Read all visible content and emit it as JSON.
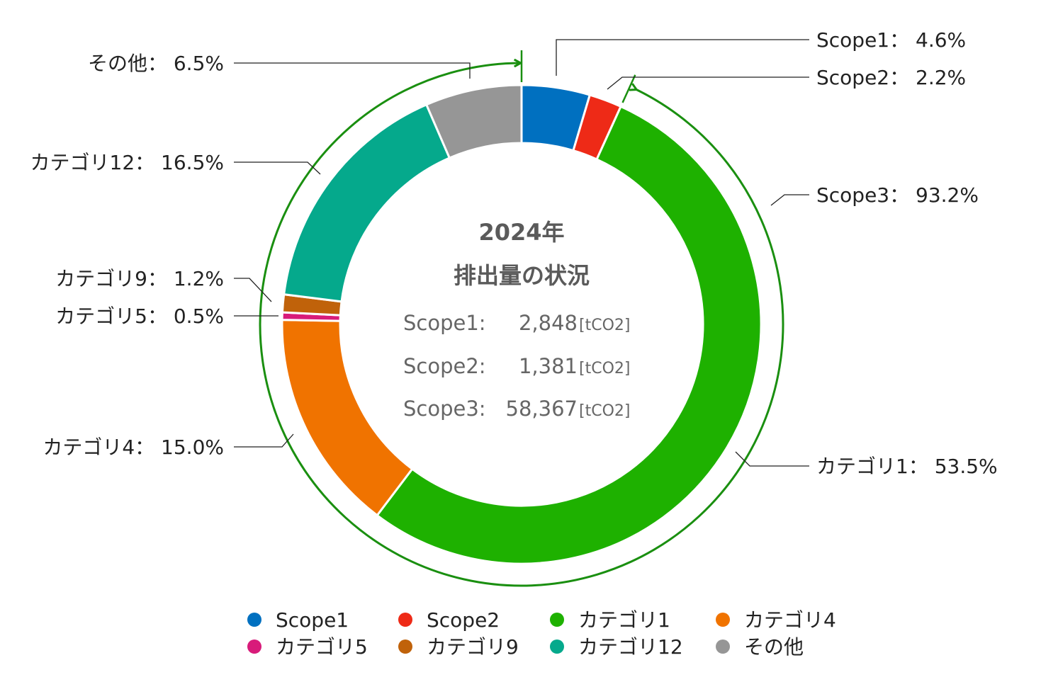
{
  "chart_data": {
    "type": "pie",
    "variant": "donut",
    "title": "2024年",
    "subtitle": "排出量の状況",
    "slices": [
      {
        "name": "Scope1",
        "value": 4.6,
        "color": "#0070c0"
      },
      {
        "name": "Scope2",
        "value": 2.2,
        "color": "#ee2a17"
      },
      {
        "name": "カテゴリ1",
        "value": 53.5,
        "color": "#1eb100"
      },
      {
        "name": "カテゴリ4",
        "value": 15.0,
        "color": "#f07300"
      },
      {
        "name": "カテゴリ5",
        "value": 0.5,
        "color": "#d81b7a"
      },
      {
        "name": "カテゴリ9",
        "value": 1.2,
        "color": "#c0620a"
      },
      {
        "name": "カテゴリ12",
        "value": 16.5,
        "color": "#05a98c"
      },
      {
        "name": "その他",
        "value": 6.5,
        "color": "#969696"
      }
    ],
    "callouts": [
      {
        "slice": "Scope1",
        "text": "Scope1： 4.6%"
      },
      {
        "slice": "Scope2",
        "text": "Scope2： 2.2%"
      },
      {
        "slice": "Scope3",
        "text": "Scope3： 93.2%"
      },
      {
        "slice": "カテゴリ1",
        "text": "カテゴリ1： 53.5%"
      },
      {
        "slice": "カテゴリ4",
        "text": "カテゴリ4： 15.0%"
      },
      {
        "slice": "カテゴリ5",
        "text": "カテゴリ5： 0.5%"
      },
      {
        "slice": "カテゴリ9",
        "text": "カテゴリ9： 1.2%"
      },
      {
        "slice": "カテゴリ12",
        "text": "カテゴリ12： 16.5%"
      },
      {
        "slice": "その他",
        "text": "その他： 6.5%"
      }
    ],
    "scope3_arc": {
      "label": "Scope3",
      "value": 93.2,
      "color": "#1a8f10"
    },
    "center_rows": [
      {
        "label": "Scope1:",
        "value": "2,848",
        "unit": "[tCO2]"
      },
      {
        "label": "Scope2:",
        "value": "1,381",
        "unit": "[tCO2]"
      },
      {
        "label": "Scope3:",
        "value": "58,367",
        "unit": "[tCO2]"
      }
    ],
    "legend": {
      "placement": "bottom",
      "entries": [
        "Scope1",
        "Scope2",
        "カテゴリ1",
        "カテゴリ4",
        "カテゴリ5",
        "カテゴリ9",
        "カテゴリ12",
        "その他"
      ]
    }
  }
}
